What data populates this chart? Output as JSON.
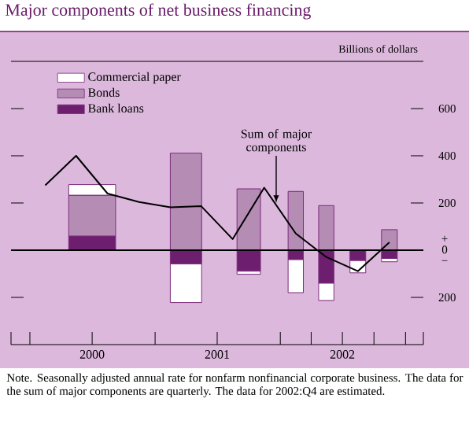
{
  "chart_data": {
    "type": "bar",
    "title": "Major components of net business financing",
    "ylabel": "Billions of dollars",
    "x": [
      "2000-07-01",
      "2001-04-01",
      "2001-10-01",
      "2002-02-15",
      "2002-05-15",
      "2002-08-15",
      "2002-11-15"
    ],
    "stacked": true,
    "series": [
      {
        "name": "Bank loans",
        "color": "#6e1e6e",
        "values": [
          60,
          -58,
          -89,
          -40,
          -140,
          -44,
          -35
        ]
      },
      {
        "name": "Bonds",
        "color": "#b48cb4",
        "values": [
          173,
          411,
          260,
          249,
          189,
          0,
          87
        ]
      },
      {
        "name": "Commercial paper",
        "color": "#ffffff",
        "values": [
          45,
          -164,
          -13,
          -140,
          -73,
          -52,
          -14
        ]
      },
      {
        "type": "line",
        "color": "#000000",
        "x": [
          "2000-02-15",
          "2000-05-15",
          "2000-08-15",
          "2000-11-15",
          "2001-02-15",
          "2001-05-15",
          "2001-08-15",
          "2001-11-15",
          "2002-02-15",
          "2002-05-15",
          "2002-08-15",
          "2002-11-15"
        ],
        "values": [
          275,
          400,
          240,
          204,
          182,
          187,
          47,
          265,
          71,
          -29,
          -89,
          33
        ]
      }
    ],
    "xlim": [
      "1999-11-07",
      "2003-02-22"
    ],
    "xticks": [
      {
        "value": "1999-11-07",
        "label": null
      },
      {
        "value": "2000-01-01",
        "label": null
      },
      {
        "value": "2000-07-01",
        "label": "2000"
      },
      {
        "value": "2001-01-01",
        "label": null
      },
      {
        "value": "2001-07-01",
        "label": "2001"
      },
      {
        "value": "2002-01-01",
        "label": null
      },
      {
        "value": "2002-04-01",
        "label": null
      },
      {
        "value": "2002-07-01",
        "label": "2002"
      },
      {
        "value": "2002-10-01",
        "label": null
      },
      {
        "value": "2003-01-01",
        "label": null
      },
      {
        "value": "2003-02-22",
        "label": null
      }
    ],
    "ylim": [
      -400,
      800
    ],
    "yticks": [
      {
        "value": -200,
        "label": "200"
      },
      {
        "value": 0,
        "label": "+ 0 −"
      },
      200,
      400,
      600
    ],
    "ref_lines": [
      {
        "axis": "y",
        "value": 0,
        "color": "#000000"
      }
    ],
    "legend": "top left",
    "grid": false,
    "marker": "none",
    "annotations": [
      {
        "text": "Sum of major components",
        "x": "2001-12-20",
        "y": 200
      },
      "Note. Seasonally adjusted annual rate for nonfarm nonfinancial corporate business. The data for the sum of major components are quarterly. The data for 2002:Q4 are estimated."
    ]
  }
}
